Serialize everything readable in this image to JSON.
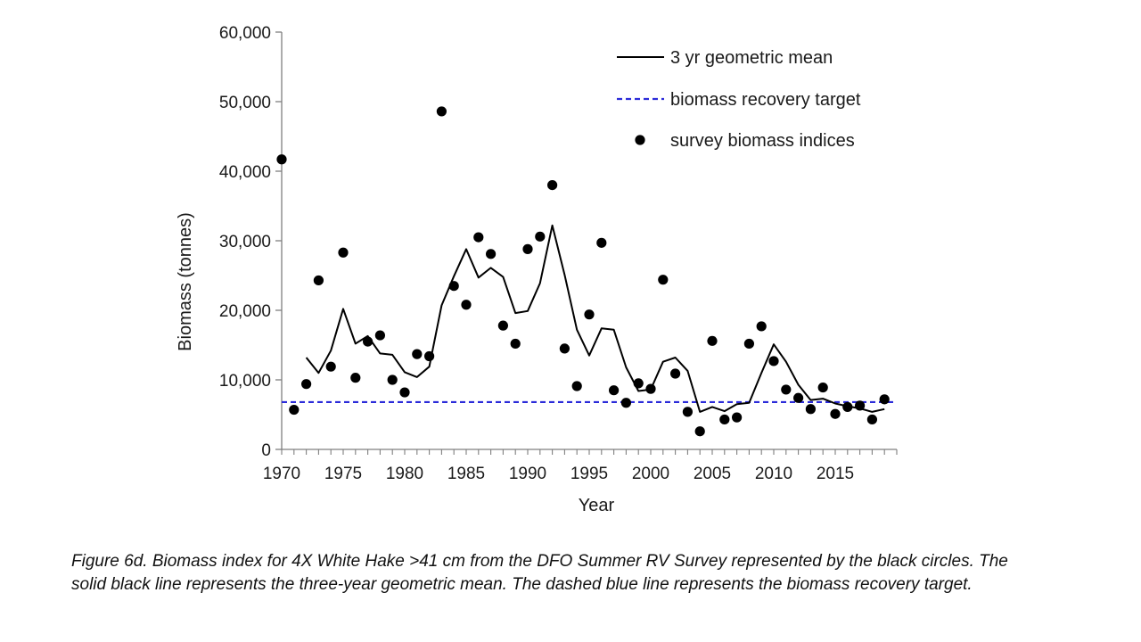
{
  "chart_data": {
    "type": "line",
    "xlabel": "Year",
    "ylabel": "Biomass (tonnes)",
    "xlim": [
      1970,
      2020
    ],
    "ylim": [
      0,
      60000
    ],
    "xticks": [
      "1970",
      "1975",
      "1980",
      "1985",
      "1990",
      "1995",
      "2000",
      "2005",
      "2010",
      "2015"
    ],
    "yticks": [
      "0",
      "10,000",
      "20,000",
      "30,000",
      "40,000",
      "50,000",
      "60,000"
    ],
    "grid": false,
    "legend_position": "top-right",
    "series": [
      {
        "name": "3 yr geometric mean",
        "kind": "line",
        "style": "solid",
        "color": "#000000",
        "x": [
          1972,
          1973,
          1974,
          1975,
          1976,
          1977,
          1978,
          1979,
          1980,
          1981,
          1982,
          1983,
          1984,
          1985,
          1986,
          1987,
          1988,
          1989,
          1990,
          1991,
          1992,
          1993,
          1994,
          1995,
          1996,
          1997,
          1998,
          1999,
          2000,
          2001,
          2002,
          2003,
          2004,
          2005,
          2006,
          2007,
          2008,
          2009,
          2010,
          2011,
          2012,
          2013,
          2014,
          2015,
          2016,
          2017,
          2018,
          2019
        ],
        "y": [
          13200,
          11000,
          14200,
          20200,
          15200,
          16300,
          13800,
          13600,
          11100,
          10400,
          11900,
          20700,
          24900,
          28800,
          24700,
          26100,
          24800,
          19600,
          19900,
          23900,
          32200,
          25100,
          17200,
          13500,
          17400,
          17200,
          11800,
          8400,
          8600,
          12600,
          13200,
          11300,
          5400,
          6100,
          5500,
          6500,
          6700,
          11000,
          15100,
          12600,
          9300,
          7100,
          7300,
          6600,
          6200,
          5900,
          5400,
          5800
        ]
      },
      {
        "name": "biomass recovery target",
        "kind": "hline",
        "style": "dashed",
        "color": "#2b2bd9",
        "y": 6800
      },
      {
        "name": "survey biomass indices",
        "kind": "scatter",
        "color": "#000000",
        "x": [
          1970,
          1971,
          1972,
          1973,
          1974,
          1975,
          1976,
          1977,
          1978,
          1979,
          1980,
          1981,
          1982,
          1983,
          1984,
          1985,
          1986,
          1987,
          1988,
          1989,
          1990,
          1991,
          1992,
          1993,
          1994,
          1995,
          1996,
          1997,
          1998,
          1999,
          2000,
          2001,
          2002,
          2003,
          2004,
          2005,
          2006,
          2007,
          2008,
          2009,
          2010,
          2011,
          2012,
          2013,
          2014,
          2015,
          2016,
          2017,
          2018,
          2019
        ],
        "y": [
          41700,
          5700,
          9400,
          24300,
          11900,
          28300,
          10300,
          15500,
          16400,
          10000,
          8200,
          13700,
          13400,
          48600,
          23500,
          20800,
          30500,
          28100,
          17800,
          15200,
          28800,
          30600,
          38000,
          14500,
          9100,
          19400,
          29700,
          8500,
          6700,
          9500,
          8700,
          24400,
          10900,
          5400,
          2600,
          15600,
          4300,
          4600,
          15200,
          17700,
          12700,
          8600,
          7400,
          5800,
          8900,
          5100,
          6100,
          6300,
          4300,
          7200
        ]
      }
    ]
  },
  "caption": "Figure 6d. Biomass index for 4X White Hake >41 cm from the DFO Summer RV Survey represented by the black circles. The solid black line represents the three-year geometric mean. The dashed blue line represents the biomass recovery target."
}
